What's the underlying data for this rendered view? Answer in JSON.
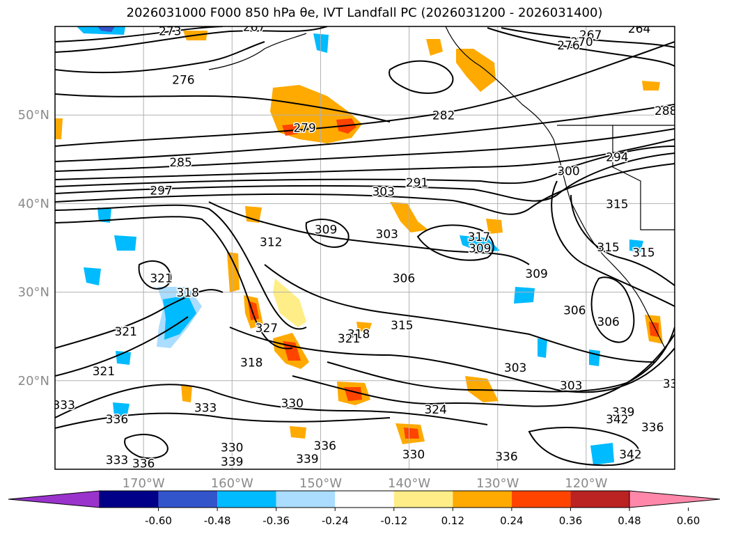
{
  "title": "2026031000 F000 850 hPa θe, IVT Landfall PC (2026031200 - 2026031400)",
  "map": {
    "lon_range": [
      -180,
      -110
    ],
    "lat_range": [
      10,
      60
    ],
    "lat_ticks": [
      {
        "value": 50,
        "label": "50°N"
      },
      {
        "value": 40,
        "label": "40°N"
      },
      {
        "value": 30,
        "label": "30°N"
      },
      {
        "value": 20,
        "label": "20°N"
      }
    ],
    "lon_ticks": [
      {
        "value": -170,
        "label": "170°W"
      },
      {
        "value": -160,
        "label": "160°W"
      },
      {
        "value": -150,
        "label": "150°W"
      },
      {
        "value": -140,
        "label": "140°W"
      },
      {
        "value": -130,
        "label": "130°W"
      },
      {
        "value": -120,
        "label": "120°W"
      }
    ],
    "grid": true
  },
  "colorbar": {
    "colors": [
      "#9933cc",
      "#000088",
      "#3355cc",
      "#00bbff",
      "#aaddff",
      "#ffffff",
      "#ffee88",
      "#ffaa00",
      "#ff4400",
      "#bb2222",
      "#ff88aa"
    ],
    "labels": [
      "-0.60",
      "-0.48",
      "-0.36",
      "-0.24",
      "-0.12",
      "0.12",
      "0.24",
      "0.36",
      "0.48",
      "0.60"
    ]
  },
  "contour_labels": [
    {
      "text": "273",
      "lon": -167.0,
      "lat": 59.0
    },
    {
      "text": "267",
      "lon": -157.5,
      "lat": 59.5
    },
    {
      "text": "276",
      "lon": -165.5,
      "lat": 53.5
    },
    {
      "text": "279",
      "lon": -151.8,
      "lat": 48.1
    },
    {
      "text": "282",
      "lon": -136.1,
      "lat": 49.5
    },
    {
      "text": "285",
      "lon": -165.8,
      "lat": 44.2
    },
    {
      "text": "291",
      "lon": -139.1,
      "lat": 41.9
    },
    {
      "text": "297",
      "lon": -168.0,
      "lat": 41.0
    },
    {
      "text": "303",
      "lon": -142.9,
      "lat": 40.9
    },
    {
      "text": "303",
      "lon": -142.5,
      "lat": 36.1
    },
    {
      "text": "309",
      "lon": -149.4,
      "lat": 36.6
    },
    {
      "text": "312",
      "lon": -155.6,
      "lat": 35.2
    },
    {
      "text": "306",
      "lon": -140.6,
      "lat": 31.1
    },
    {
      "text": "315",
      "lon": -140.8,
      "lat": 25.8
    },
    {
      "text": "318",
      "lon": -145.7,
      "lat": 24.8
    },
    {
      "text": "321",
      "lon": -146.8,
      "lat": 24.3
    },
    {
      "text": "321",
      "lon": -168.0,
      "lat": 31.1
    },
    {
      "text": "318",
      "lon": -165.0,
      "lat": 29.5
    },
    {
      "text": "321",
      "lon": -172.0,
      "lat": 25.1
    },
    {
      "text": "327",
      "lon": -156.1,
      "lat": 25.5
    },
    {
      "text": "318",
      "lon": -157.8,
      "lat": 21.6
    },
    {
      "text": "321",
      "lon": -174.5,
      "lat": 20.6
    },
    {
      "text": "317",
      "lon": -132.1,
      "lat": 35.8
    },
    {
      "text": "309",
      "lon": -132.0,
      "lat": 34.5
    },
    {
      "text": "309",
      "lon": -125.6,
      "lat": 31.6
    },
    {
      "text": "303",
      "lon": -128.0,
      "lat": 21.0
    },
    {
      "text": "303",
      "lon": -121.7,
      "lat": 19.0
    },
    {
      "text": "330",
      "lon": -153.2,
      "lat": 17.0
    },
    {
      "text": "333",
      "lon": -163.0,
      "lat": 16.5
    },
    {
      "text": "333",
      "lon": -179.0,
      "lat": 16.8
    },
    {
      "text": "336",
      "lon": -173.0,
      "lat": 15.2
    },
    {
      "text": "324",
      "lon": -137.0,
      "lat": 16.3
    },
    {
      "text": "330",
      "lon": -160.0,
      "lat": 12.0
    },
    {
      "text": "339",
      "lon": -160.0,
      "lat": 10.4
    },
    {
      "text": "333",
      "lon": -173.0,
      "lat": 10.6
    },
    {
      "text": "336",
      "lon": -170.0,
      "lat": 10.2
    },
    {
      "text": "339",
      "lon": -151.5,
      "lat": 10.7
    },
    {
      "text": "336",
      "lon": -149.5,
      "lat": 12.2
    },
    {
      "text": "330",
      "lon": -139.5,
      "lat": 11.2
    },
    {
      "text": "336",
      "lon": -129.0,
      "lat": 11.0
    },
    {
      "text": "342",
      "lon": -115.0,
      "lat": 11.2
    },
    {
      "text": "306",
      "lon": -117.5,
      "lat": 26.2
    },
    {
      "text": "306",
      "lon": -121.3,
      "lat": 27.5
    },
    {
      "text": "315",
      "lon": -117.5,
      "lat": 34.6
    },
    {
      "text": "315",
      "lon": -113.5,
      "lat": 34.0
    },
    {
      "text": "315",
      "lon": -116.5,
      "lat": 39.5
    },
    {
      "text": "300",
      "lon": -122.0,
      "lat": 43.2
    },
    {
      "text": "294",
      "lon": -116.5,
      "lat": 44.8
    },
    {
      "text": "267",
      "lon": -119.5,
      "lat": 58.6
    },
    {
      "text": "264",
      "lon": -114.0,
      "lat": 59.3
    },
    {
      "text": "270",
      "lon": -120.5,
      "lat": 57.8
    },
    {
      "text": "276",
      "lon": -122.0,
      "lat": 57.4
    },
    {
      "text": "288",
      "lon": -111.0,
      "lat": 50.0
    },
    {
      "text": "339",
      "lon": -115.8,
      "lat": 16.0
    },
    {
      "text": "342",
      "lon": -116.5,
      "lat": 15.2
    },
    {
      "text": "336",
      "lon": -112.5,
      "lat": 14.3
    },
    {
      "text": "33",
      "lon": -110.5,
      "lat": 19.2
    }
  ]
}
